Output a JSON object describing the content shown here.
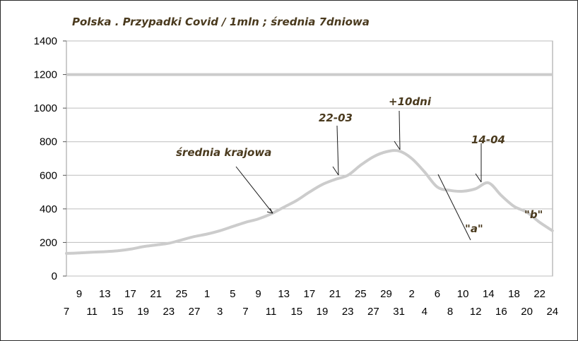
{
  "chart_data": {
    "type": "line",
    "title": "Polska . Przypadki Covid / 1mln ; średnia 7dniowa",
    "xlabel": "",
    "ylabel": "",
    "ylim": [
      0,
      1400
    ],
    "y_ticks": [
      0,
      200,
      400,
      600,
      800,
      1000,
      1200,
      1400
    ],
    "x_tick_labels_row1": [
      "9",
      "13",
      "17",
      "21",
      "25",
      "1",
      "5",
      "9",
      "13",
      "17",
      "21",
      "25",
      "29",
      "2",
      "6",
      "10",
      "14",
      "18",
      "22"
    ],
    "x_tick_labels_row2": [
      "7",
      "11",
      "15",
      "19",
      "23",
      "27",
      "3",
      "7",
      "11",
      "15",
      "19",
      "23",
      "27",
      "31",
      "4",
      "8",
      "12",
      "16",
      "20",
      "24"
    ],
    "x_start_date": "2021-02-07",
    "x": [
      "2021-02-07",
      "2021-02-09",
      "2021-02-11",
      "2021-02-13",
      "2021-02-15",
      "2021-02-17",
      "2021-02-19",
      "2021-02-21",
      "2021-02-23",
      "2021-02-25",
      "2021-02-27",
      "2021-03-01",
      "2021-03-03",
      "2021-03-05",
      "2021-03-07",
      "2021-03-09",
      "2021-03-11",
      "2021-03-13",
      "2021-03-15",
      "2021-03-17",
      "2021-03-19",
      "2021-03-21",
      "2021-03-23",
      "2021-03-25",
      "2021-03-27",
      "2021-03-29",
      "2021-03-31",
      "2021-04-02",
      "2021-04-04",
      "2021-04-06",
      "2021-04-08",
      "2021-04-10",
      "2021-04-12",
      "2021-04-14",
      "2021-04-16",
      "2021-04-18",
      "2021-04-20",
      "2021-04-22",
      "2021-04-24"
    ],
    "values": [
      135,
      138,
      142,
      145,
      150,
      160,
      175,
      185,
      195,
      215,
      235,
      250,
      270,
      295,
      320,
      340,
      370,
      410,
      450,
      500,
      545,
      575,
      600,
      660,
      710,
      740,
      745,
      700,
      620,
      530,
      510,
      505,
      520,
      555,
      480,
      415,
      380,
      320,
      270
    ],
    "constant_line": {
      "value": 1200
    },
    "grid": true,
    "colors": {
      "series": "#cccccc",
      "grid": "#bdbdbd",
      "annotation": "#4a3a1e"
    },
    "annotations": [
      {
        "text": "średnia krajowa",
        "target_x": "2021-03-13"
      },
      {
        "text": "22-03",
        "target_x": "2021-03-22"
      },
      {
        "text": "+10dni",
        "target_x": "2021-04-01"
      },
      {
        "text": "14-04",
        "target_x": "2021-04-14"
      },
      {
        "text": "\"a\"",
        "target_x": "2021-04-08"
      },
      {
        "text": "\"b\"",
        "target_x": "2021-04-22"
      }
    ]
  }
}
